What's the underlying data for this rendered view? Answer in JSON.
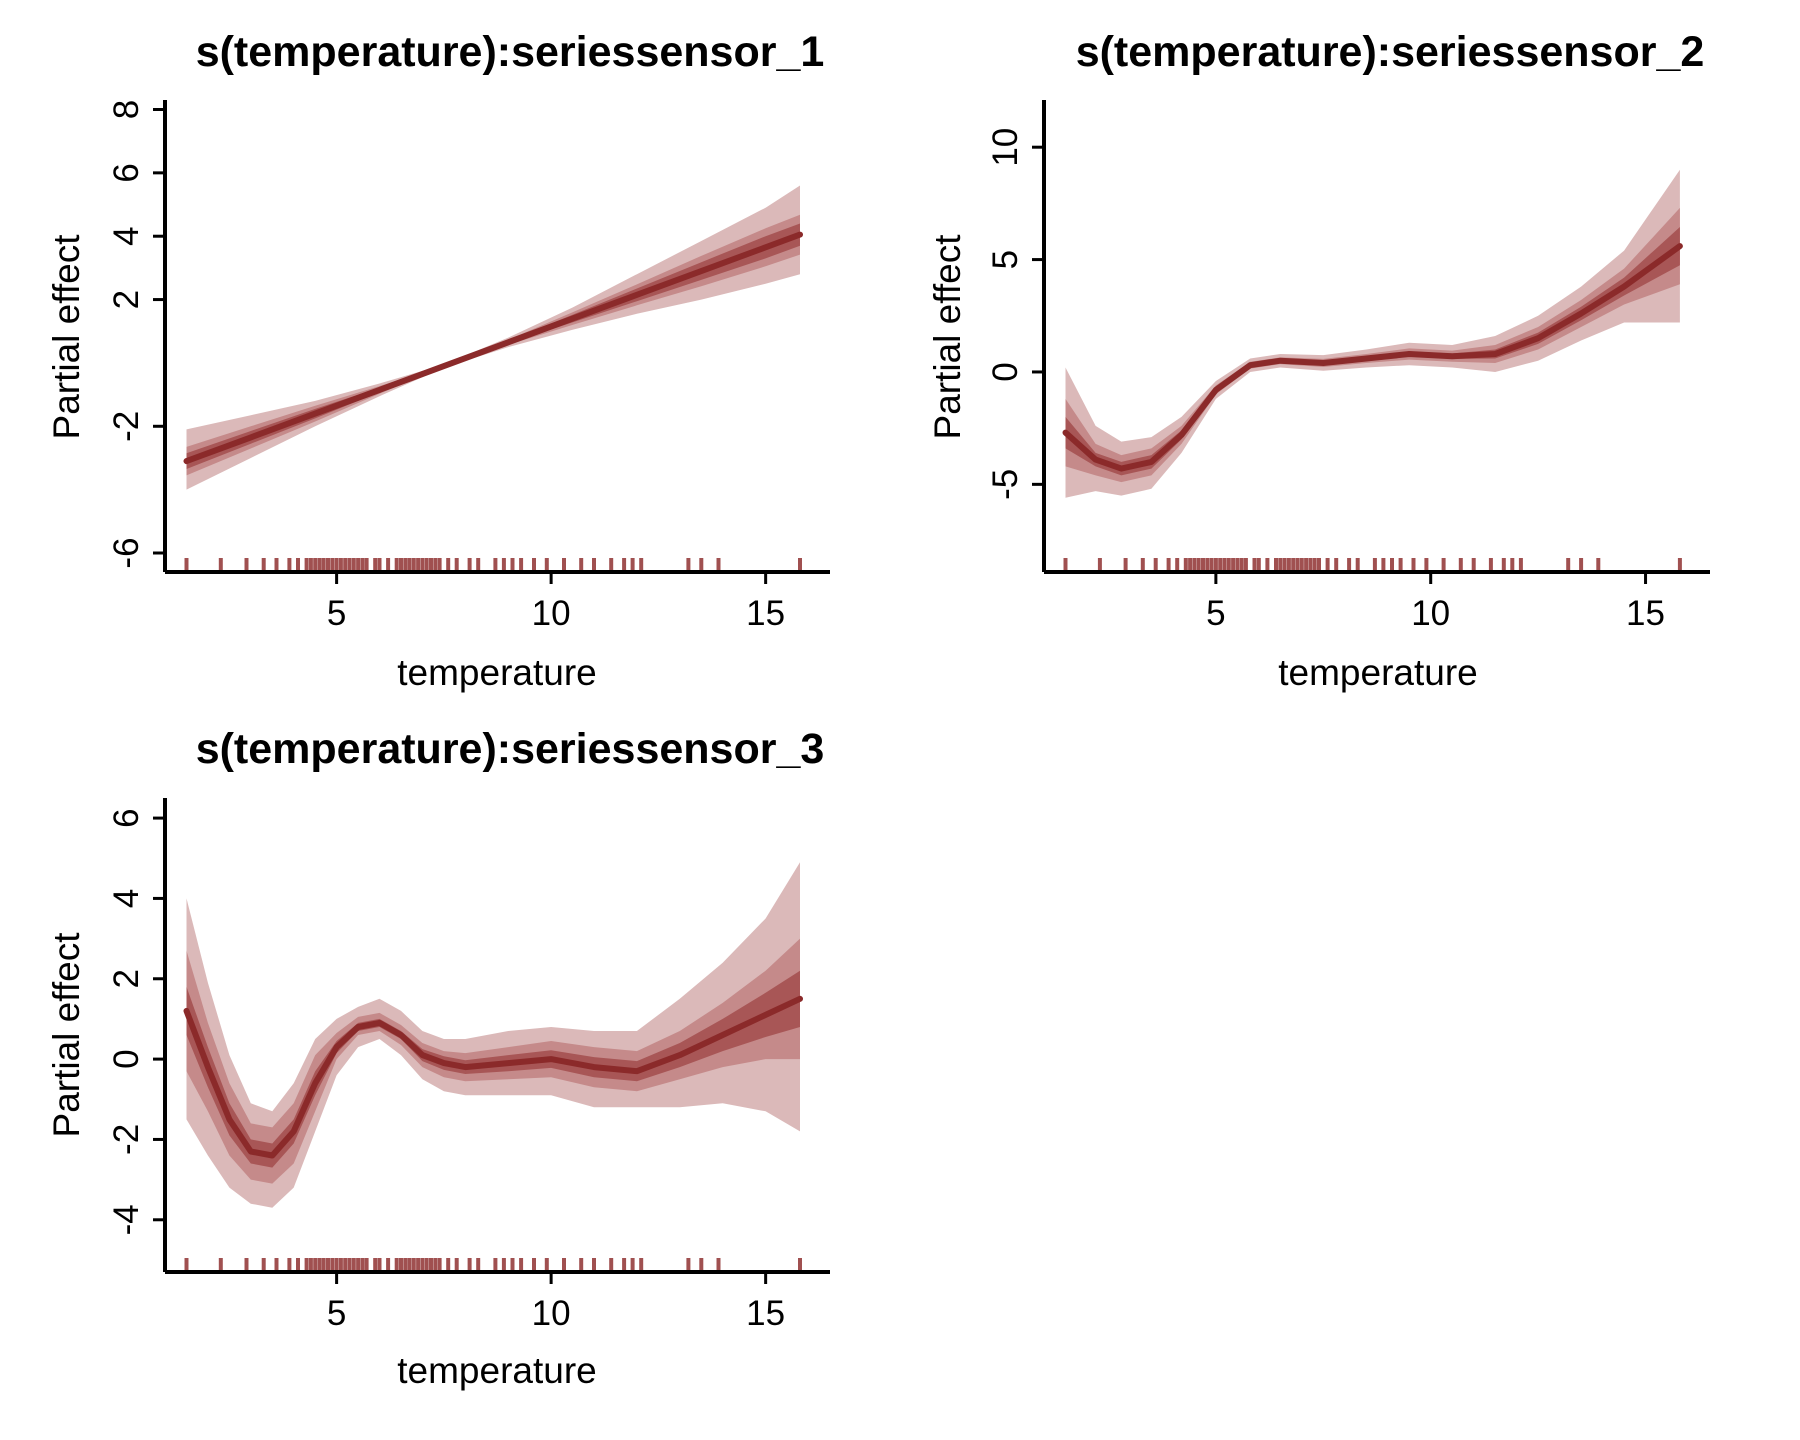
{
  "chart_data": [
    {
      "type": "line",
      "title": "s(temperature):seriessensor_1",
      "xlabel": "temperature",
      "ylabel": "Partial effect",
      "xlim": [
        1.0,
        16.5
      ],
      "ylim": [
        -6.6,
        8.3
      ],
      "xticks": [
        5,
        10,
        15
      ],
      "yticks": [
        -6,
        -2,
        2,
        4,
        6,
        8
      ],
      "ytick_labels": [
        "-6",
        "-2",
        "2",
        "4",
        "6",
        "8"
      ],
      "x": [
        1.5,
        3.0,
        4.5,
        6.0,
        7.5,
        9.0,
        10.5,
        12.0,
        13.5,
        15.0,
        15.8
      ],
      "y": [
        -3.1,
        -2.35,
        -1.6,
        -0.85,
        -0.1,
        0.65,
        1.4,
        2.15,
        2.9,
        3.65,
        4.05
      ],
      "bands": [
        {
          "lower": [
            -4.0,
            -3.0,
            -2.0,
            -1.05,
            -0.15,
            0.5,
            1.05,
            1.55,
            2.0,
            2.5,
            2.8
          ],
          "upper": [
            -2.1,
            -1.65,
            -1.2,
            -0.65,
            -0.05,
            0.8,
            1.75,
            2.8,
            3.85,
            4.9,
            5.6
          ]
        },
        {
          "lower": [
            -3.55,
            -2.7,
            -1.85,
            -0.97,
            -0.12,
            0.57,
            1.2,
            1.82,
            2.42,
            3.05,
            3.42
          ],
          "upper": [
            -2.65,
            -2.0,
            -1.35,
            -0.73,
            -0.08,
            0.73,
            1.6,
            2.48,
            3.38,
            4.25,
            4.68
          ]
        },
        {
          "lower": [
            -3.35,
            -2.55,
            -1.75,
            -0.92,
            -0.11,
            0.6,
            1.28,
            1.95,
            2.62,
            3.3,
            3.7
          ],
          "upper": [
            -2.85,
            -2.15,
            -1.45,
            -0.78,
            -0.09,
            0.7,
            1.52,
            2.35,
            3.18,
            4.0,
            4.4
          ]
        }
      ],
      "rug": [
        1.5,
        2.3,
        2.9,
        3.3,
        3.6,
        3.9,
        4.1,
        4.3,
        4.4,
        4.5,
        4.6,
        4.7,
        4.8,
        4.9,
        5.0,
        5.1,
        5.2,
        5.3,
        5.4,
        5.5,
        5.6,
        5.7,
        5.9,
        6.0,
        6.2,
        6.4,
        6.5,
        6.6,
        6.7,
        6.8,
        6.9,
        7.0,
        7.1,
        7.2,
        7.3,
        7.4,
        7.6,
        7.8,
        8.1,
        8.3,
        8.7,
        8.9,
        9.1,
        9.3,
        9.6,
        9.9,
        10.3,
        10.7,
        11.0,
        11.4,
        11.7,
        11.9,
        12.1,
        13.2,
        13.5,
        13.9,
        15.8
      ],
      "colors": {
        "line": "#8b2a2a",
        "band_outer": "#dbb9b9",
        "band_mid": "#c58a8a",
        "band_inner": "#a85656",
        "rug": "#a05050"
      }
    },
    {
      "type": "line",
      "title": "s(temperature):seriessensor_2",
      "xlabel": "temperature",
      "ylabel": "Partial effect",
      "xlim": [
        1.0,
        16.5
      ],
      "ylim": [
        -8.9,
        12.1
      ],
      "xticks": [
        5,
        10,
        15
      ],
      "yticks": [
        -5,
        0,
        5,
        10
      ],
      "ytick_labels": [
        "-5",
        "0",
        "5",
        "10"
      ],
      "x": [
        1.5,
        2.2,
        2.8,
        3.5,
        4.2,
        5.0,
        5.8,
        6.5,
        7.5,
        8.5,
        9.5,
        10.5,
        11.5,
        12.5,
        13.5,
        14.5,
        15.8
      ],
      "y": [
        -2.7,
        -3.9,
        -4.3,
        -4.0,
        -2.8,
        -0.8,
        0.3,
        0.5,
        0.4,
        0.6,
        0.8,
        0.7,
        0.8,
        1.5,
        2.6,
        3.8,
        5.6
      ],
      "bands": [
        {
          "lower": [
            -5.6,
            -5.3,
            -5.5,
            -5.2,
            -3.6,
            -1.2,
            0.0,
            0.2,
            0.05,
            0.2,
            0.3,
            0.2,
            0.0,
            0.5,
            1.4,
            2.2,
            2.2
          ],
          "upper": [
            0.2,
            -2.4,
            -3.1,
            -2.9,
            -2.0,
            -0.4,
            0.6,
            0.8,
            0.75,
            1.0,
            1.3,
            1.2,
            1.6,
            2.5,
            3.8,
            5.4,
            9.0
          ]
        },
        {
          "lower": [
            -4.2,
            -4.6,
            -4.9,
            -4.6,
            -3.2,
            -1.0,
            0.15,
            0.35,
            0.22,
            0.4,
            0.55,
            0.45,
            0.4,
            1.0,
            2.0,
            3.0,
            3.9
          ],
          "upper": [
            -1.2,
            -3.2,
            -3.7,
            -3.4,
            -2.4,
            -0.6,
            0.45,
            0.65,
            0.58,
            0.8,
            1.05,
            0.95,
            1.2,
            2.0,
            3.2,
            4.6,
            7.3
          ]
        },
        {
          "lower": [
            -3.4,
            -4.2,
            -4.6,
            -4.3,
            -3.0,
            -0.9,
            0.22,
            0.42,
            0.3,
            0.5,
            0.68,
            0.58,
            0.6,
            1.25,
            2.3,
            3.4,
            4.75
          ],
          "upper": [
            -2.0,
            -3.6,
            -4.0,
            -3.7,
            -2.6,
            -0.7,
            0.38,
            0.58,
            0.5,
            0.7,
            0.92,
            0.82,
            1.0,
            1.75,
            2.9,
            4.2,
            6.45
          ]
        }
      ],
      "rug": [
        1.5,
        2.3,
        2.9,
        3.3,
        3.6,
        3.9,
        4.1,
        4.3,
        4.4,
        4.5,
        4.6,
        4.7,
        4.8,
        4.9,
        5.0,
        5.1,
        5.2,
        5.3,
        5.4,
        5.5,
        5.6,
        5.7,
        5.9,
        6.0,
        6.2,
        6.4,
        6.5,
        6.6,
        6.7,
        6.8,
        6.9,
        7.0,
        7.1,
        7.2,
        7.3,
        7.4,
        7.6,
        7.8,
        8.1,
        8.3,
        8.7,
        8.9,
        9.1,
        9.3,
        9.6,
        9.9,
        10.3,
        10.7,
        11.0,
        11.4,
        11.7,
        11.9,
        12.1,
        13.2,
        13.5,
        13.9,
        15.8
      ],
      "colors": {
        "line": "#8b2a2a",
        "band_outer": "#dbb9b9",
        "band_mid": "#c58a8a",
        "band_inner": "#a85656",
        "rug": "#a05050"
      }
    },
    {
      "type": "line",
      "title": "s(temperature):seriessensor_3",
      "xlabel": "temperature",
      "ylabel": "Partial effect",
      "xlim": [
        1.0,
        16.5
      ],
      "ylim": [
        -5.3,
        6.5
      ],
      "xticks": [
        5,
        10,
        15
      ],
      "yticks": [
        -4,
        -2,
        0,
        2,
        4,
        6
      ],
      "ytick_labels": [
        "-4",
        "-2",
        "0",
        "2",
        "4",
        "6"
      ],
      "x": [
        1.5,
        2.0,
        2.5,
        3.0,
        3.5,
        4.0,
        4.5,
        5.0,
        5.5,
        6.0,
        6.5,
        7.0,
        7.5,
        8.0,
        9.0,
        10.0,
        11.0,
        12.0,
        13.0,
        14.0,
        15.0,
        15.8
      ],
      "y": [
        1.2,
        -0.2,
        -1.5,
        -2.3,
        -2.4,
        -1.8,
        -0.6,
        0.3,
        0.8,
        0.9,
        0.6,
        0.1,
        -0.1,
        -0.2,
        -0.1,
        0.0,
        -0.2,
        -0.3,
        0.1,
        0.6,
        1.1,
        1.5
      ],
      "bands": [
        {
          "lower": [
            -1.5,
            -2.4,
            -3.2,
            -3.6,
            -3.7,
            -3.2,
            -1.8,
            -0.4,
            0.3,
            0.5,
            0.1,
            -0.5,
            -0.8,
            -0.9,
            -0.9,
            -0.9,
            -1.2,
            -1.2,
            -1.2,
            -1.1,
            -1.3,
            -1.8
          ],
          "upper": [
            4.0,
            1.9,
            0.1,
            -1.1,
            -1.3,
            -0.6,
            0.5,
            1.0,
            1.3,
            1.5,
            1.2,
            0.7,
            0.5,
            0.5,
            0.7,
            0.8,
            0.7,
            0.7,
            1.5,
            2.4,
            3.5,
            4.9
          ]
        },
        {
          "lower": [
            -0.3,
            -1.3,
            -2.4,
            -3.0,
            -3.1,
            -2.6,
            -1.3,
            0.0,
            0.6,
            0.7,
            0.35,
            -0.2,
            -0.45,
            -0.55,
            -0.5,
            -0.45,
            -0.7,
            -0.8,
            -0.5,
            -0.2,
            0.0,
            0.0
          ],
          "upper": [
            2.7,
            0.9,
            -0.6,
            -1.6,
            -1.7,
            -1.1,
            0.1,
            0.65,
            1.05,
            1.15,
            0.85,
            0.4,
            0.2,
            0.15,
            0.3,
            0.45,
            0.3,
            0.2,
            0.7,
            1.4,
            2.2,
            3.0
          ]
        },
        {
          "lower": [
            0.6,
            -0.7,
            -1.9,
            -2.6,
            -2.7,
            -2.1,
            -0.9,
            0.15,
            0.7,
            0.8,
            0.5,
            -0.05,
            -0.27,
            -0.37,
            -0.3,
            -0.22,
            -0.45,
            -0.55,
            -0.2,
            0.2,
            0.55,
            0.8
          ],
          "upper": [
            1.8,
            0.3,
            -1.1,
            -2.0,
            -2.1,
            -1.5,
            -0.3,
            0.45,
            0.9,
            1.0,
            0.7,
            0.25,
            0.07,
            -0.03,
            0.1,
            0.22,
            0.05,
            -0.05,
            0.4,
            1.0,
            1.65,
            2.2
          ]
        }
      ],
      "rug": [
        1.5,
        2.3,
        2.9,
        3.3,
        3.6,
        3.9,
        4.1,
        4.3,
        4.4,
        4.5,
        4.6,
        4.7,
        4.8,
        4.9,
        5.0,
        5.1,
        5.2,
        5.3,
        5.4,
        5.5,
        5.6,
        5.7,
        5.9,
        6.0,
        6.2,
        6.4,
        6.5,
        6.6,
        6.7,
        6.8,
        6.9,
        7.0,
        7.1,
        7.2,
        7.3,
        7.4,
        7.6,
        7.8,
        8.1,
        8.3,
        8.7,
        8.9,
        9.1,
        9.3,
        9.6,
        9.9,
        10.3,
        10.7,
        11.0,
        11.4,
        11.7,
        11.9,
        12.1,
        13.2,
        13.5,
        13.9,
        15.8
      ],
      "colors": {
        "line": "#8b2a2a",
        "band_outer": "#dbb9b9",
        "band_mid": "#c58a8a",
        "band_inner": "#a85656",
        "rug": "#a05050"
      }
    }
  ]
}
